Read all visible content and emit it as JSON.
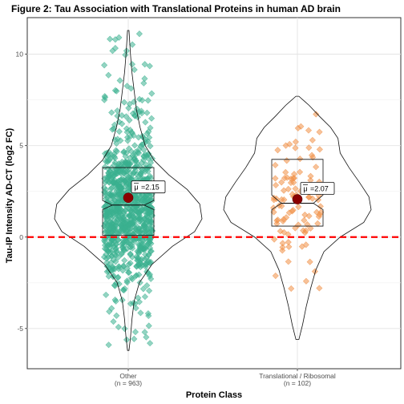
{
  "chart_data": {
    "type": "violin",
    "title": "Figure 2: Tau Association with Translational Proteins in human AD brain",
    "xlabel": "Protein Class",
    "ylabel": "Tau-IP Intensity AD-CT (log2 FC)",
    "ylim": [
      -7.2,
      12.0
    ],
    "yticks": [
      -5,
      0,
      5,
      10
    ],
    "yticks_labels": [
      "-5",
      "0",
      "5",
      "10"
    ],
    "grid": true,
    "reference_line": {
      "y": 0,
      "color": "#ff0000",
      "style": "dashed"
    },
    "categories": [
      {
        "label": "Other",
        "n_label": "(n = 963)"
      },
      {
        "label": "Translational / Ribosomal",
        "n_label": "(n = 102)"
      }
    ],
    "series": [
      {
        "category": "Other",
        "color": "#3bb08f",
        "n": 963,
        "mean": 2.15,
        "mean_label": "2.15",
        "box": {
          "q1": 0.1,
          "median": 1.75,
          "q3": 3.8,
          "notch_low": 1.5,
          "notch_high": 2.0
        },
        "range": [
          -6.2,
          11.3
        ],
        "density": [
          [
            -6.2,
            0.01
          ],
          [
            -5.5,
            0.03
          ],
          [
            -4.5,
            0.05
          ],
          [
            -3.5,
            0.08
          ],
          [
            -2.5,
            0.15
          ],
          [
            -1.5,
            0.32
          ],
          [
            -0.5,
            0.6
          ],
          [
            0.3,
            0.9
          ],
          [
            1.0,
            1.0
          ],
          [
            1.8,
            0.97
          ],
          [
            2.6,
            0.8
          ],
          [
            3.4,
            0.55
          ],
          [
            4.2,
            0.35
          ],
          [
            5.0,
            0.23
          ],
          [
            6.0,
            0.16
          ],
          [
            7.0,
            0.11
          ],
          [
            8.0,
            0.08
          ],
          [
            9.0,
            0.05
          ],
          [
            10.0,
            0.03
          ],
          [
            11.3,
            0.01
          ]
        ]
      },
      {
        "category": "Translational / Ribosomal",
        "color": "#f08f45",
        "n": 102,
        "mean": 2.07,
        "mean_label": "2.07",
        "box": {
          "q1": 0.6,
          "median": 1.85,
          "q3": 4.25,
          "notch_low": 1.5,
          "notch_high": 2.3
        },
        "range": [
          -5.6,
          7.7
        ],
        "density": [
          [
            -5.6,
            0.02
          ],
          [
            -4.8,
            0.07
          ],
          [
            -3.8,
            0.12
          ],
          [
            -2.8,
            0.18
          ],
          [
            -1.8,
            0.25
          ],
          [
            -0.8,
            0.36
          ],
          [
            0.0,
            0.58
          ],
          [
            0.8,
            0.9
          ],
          [
            1.5,
            1.0
          ],
          [
            2.2,
            0.97
          ],
          [
            3.0,
            0.84
          ],
          [
            3.8,
            0.7
          ],
          [
            4.6,
            0.58
          ],
          [
            5.4,
            0.55
          ],
          [
            6.0,
            0.45
          ],
          [
            6.6,
            0.3
          ],
          [
            7.2,
            0.16
          ],
          [
            7.7,
            0.02
          ]
        ]
      }
    ]
  }
}
